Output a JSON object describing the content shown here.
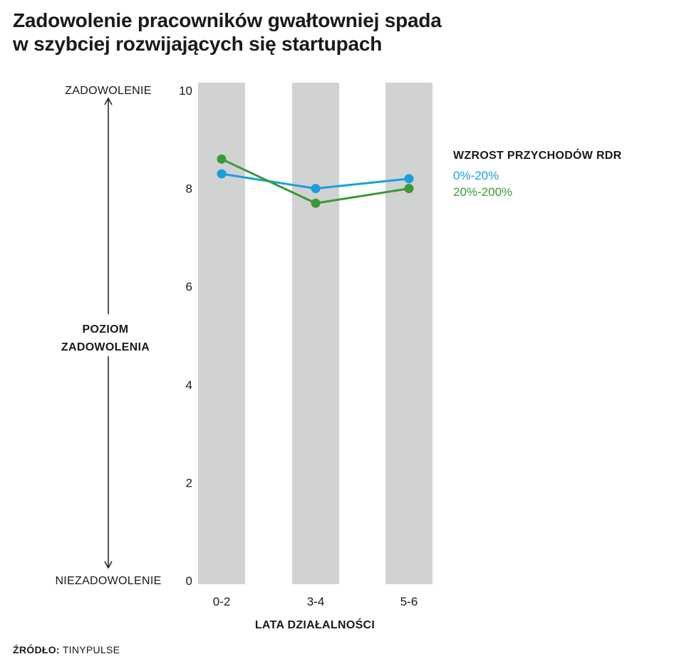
{
  "title_lines": [
    "Zadowolenie pracowników gwałtowniej spada",
    "w szybciej rozwijających się startupach"
  ],
  "chart_data": {
    "type": "line",
    "categories": [
      "0-2",
      "3-4",
      "5-6"
    ],
    "xlabel": "LATA DZIAŁALNOŚCI",
    "ylabel": "POZIOM ZADOWOLENIA",
    "ylabel_lines": [
      "POZIOM",
      "ZADOWOLENIA"
    ],
    "y_top_label": "ZADOWOLENIE",
    "y_bottom_label": "NIEZADOWOLENIE",
    "ylim": [
      0,
      10
    ],
    "yticks": [
      0,
      2,
      4,
      6,
      8,
      10
    ],
    "grid": false,
    "category_bands": true,
    "band_color": "#d1d2d2",
    "legend": {
      "title": "WZROST PRZYCHODÓW RDR",
      "placement": "right"
    },
    "series": [
      {
        "name": "0%-20%",
        "color": "#1a9fdc",
        "values": [
          8.3,
          8.0,
          8.2
        ]
      },
      {
        "name": "20%-200%",
        "color": "#3a9a35",
        "values": [
          8.6,
          7.7,
          8.0
        ]
      }
    ]
  },
  "source": {
    "label": "ŹRÓDŁO:",
    "value": "TINYPULSE"
  }
}
